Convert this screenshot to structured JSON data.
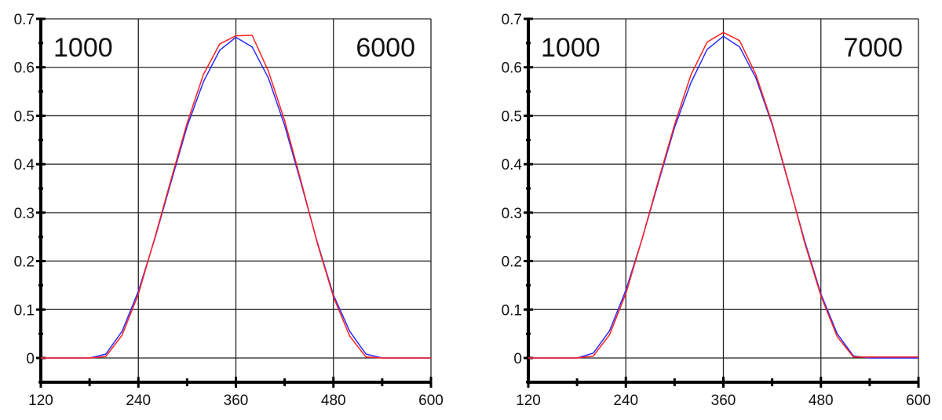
{
  "chart_data": [
    {
      "type": "line",
      "labels": {
        "left": "1000",
        "right": "6000"
      },
      "xlim": [
        120,
        600
      ],
      "ylim": [
        -0.05,
        0.7
      ],
      "xticks": [
        "120",
        "240",
        "360",
        "480",
        "600"
      ],
      "yticks": [
        "0",
        "0.1",
        "0.2",
        "0.3",
        "0.4",
        "0.5",
        "0.6",
        "0.7"
      ],
      "grid": true,
      "x": [
        120,
        140,
        160,
        180,
        200,
        220,
        240,
        260,
        280,
        300,
        320,
        340,
        360,
        380,
        400,
        420,
        440,
        460,
        480,
        500,
        520,
        540,
        560,
        580,
        600
      ],
      "series": [
        {
          "name": "blue",
          "color": "#2b2bff",
          "values": [
            0,
            0,
            0,
            0,
            0.008,
            0.055,
            0.138,
            0.245,
            0.362,
            0.478,
            0.57,
            0.635,
            0.662,
            0.642,
            0.578,
            0.48,
            0.362,
            0.24,
            0.13,
            0.055,
            0.008,
            0,
            0,
            0,
            0
          ]
        },
        {
          "name": "red",
          "color": "#ff2020",
          "values": [
            0,
            0,
            0,
            0,
            0.003,
            0.047,
            0.132,
            0.247,
            0.367,
            0.485,
            0.585,
            0.648,
            0.665,
            0.666,
            0.592,
            0.49,
            0.366,
            0.238,
            0.126,
            0.045,
            0.002,
            0,
            0,
            0,
            0
          ]
        }
      ]
    },
    {
      "type": "line",
      "labels": {
        "left": "1000",
        "right": "7000"
      },
      "xlim": [
        120,
        600
      ],
      "ylim": [
        -0.05,
        0.7
      ],
      "xticks": [
        "120",
        "240",
        "360",
        "480",
        "600"
      ],
      "yticks": [
        "0",
        "0.1",
        "0.2",
        "0.3",
        "0.4",
        "0.5",
        "0.6",
        "0.7"
      ],
      "grid": true,
      "x": [
        120,
        140,
        160,
        180,
        200,
        220,
        240,
        260,
        280,
        300,
        320,
        340,
        360,
        380,
        400,
        420,
        440,
        460,
        480,
        500,
        520,
        540,
        560,
        580,
        600
      ],
      "series": [
        {
          "name": "blue",
          "color": "#2b2bff",
          "values": [
            0,
            0,
            0,
            0,
            0.01,
            0.056,
            0.14,
            0.246,
            0.362,
            0.476,
            0.568,
            0.637,
            0.664,
            0.642,
            0.578,
            0.482,
            0.362,
            0.242,
            0.132,
            0.05,
            0.004,
            0,
            0,
            0,
            0
          ]
        },
        {
          "name": "red",
          "color": "#ff2020",
          "values": [
            0,
            0,
            0,
            0,
            0.004,
            0.048,
            0.133,
            0.246,
            0.366,
            0.482,
            0.584,
            0.652,
            0.672,
            0.655,
            0.585,
            0.485,
            0.364,
            0.238,
            0.128,
            0.044,
            0.002,
            0.002,
            0.002,
            0.002,
            0.002
          ]
        }
      ]
    }
  ]
}
